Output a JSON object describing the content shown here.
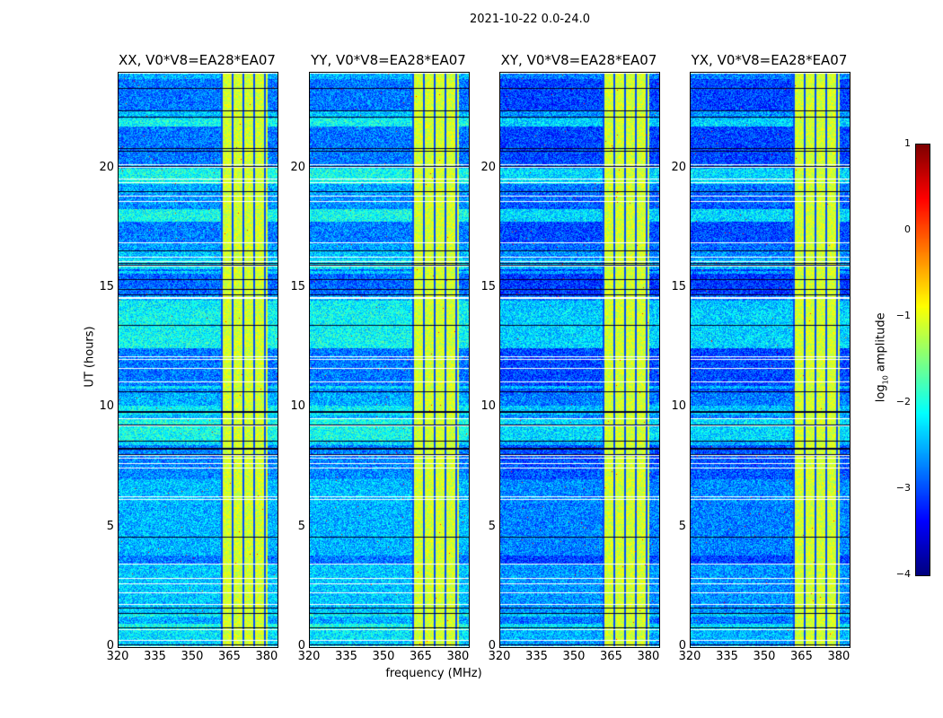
{
  "chart_data": {
    "type": "heatmap",
    "title": "2021-10-22 0.0-24.0",
    "xlabel": "frequency (MHz)",
    "ylabel": "UT (hours)",
    "xlim": [
      320,
      384
    ],
    "ylim": [
      0,
      24
    ],
    "xticks": [
      "320",
      "335",
      "350",
      "365",
      "380"
    ],
    "xtick_values": [
      320,
      335,
      350,
      365,
      380
    ],
    "yticks": [
      "0",
      "5",
      "10",
      "15",
      "20"
    ],
    "ytick_values": [
      0,
      5,
      10,
      15,
      20
    ],
    "panels": [
      {
        "title": "XX, V0*V8=EA28*EA07"
      },
      {
        "title": "YY, V0*V8=EA28*EA07"
      },
      {
        "title": "XY, V0*V8=EA28*EA07"
      },
      {
        "title": "YX, V0*V8=EA28*EA07"
      }
    ],
    "bright_band_mhz": [
      361,
      380
    ],
    "colorbar": {
      "label": "log10 amplitude",
      "label_main": "log",
      "label_sub": "10",
      "label_rest": " amplitude",
      "range": [
        -4,
        1
      ],
      "ticks": [
        "1",
        "0",
        "−1",
        "−2",
        "−3",
        "−4"
      ],
      "tick_values": [
        1,
        0,
        -1,
        -2,
        -3,
        -4
      ],
      "colormap": "jet"
    }
  }
}
